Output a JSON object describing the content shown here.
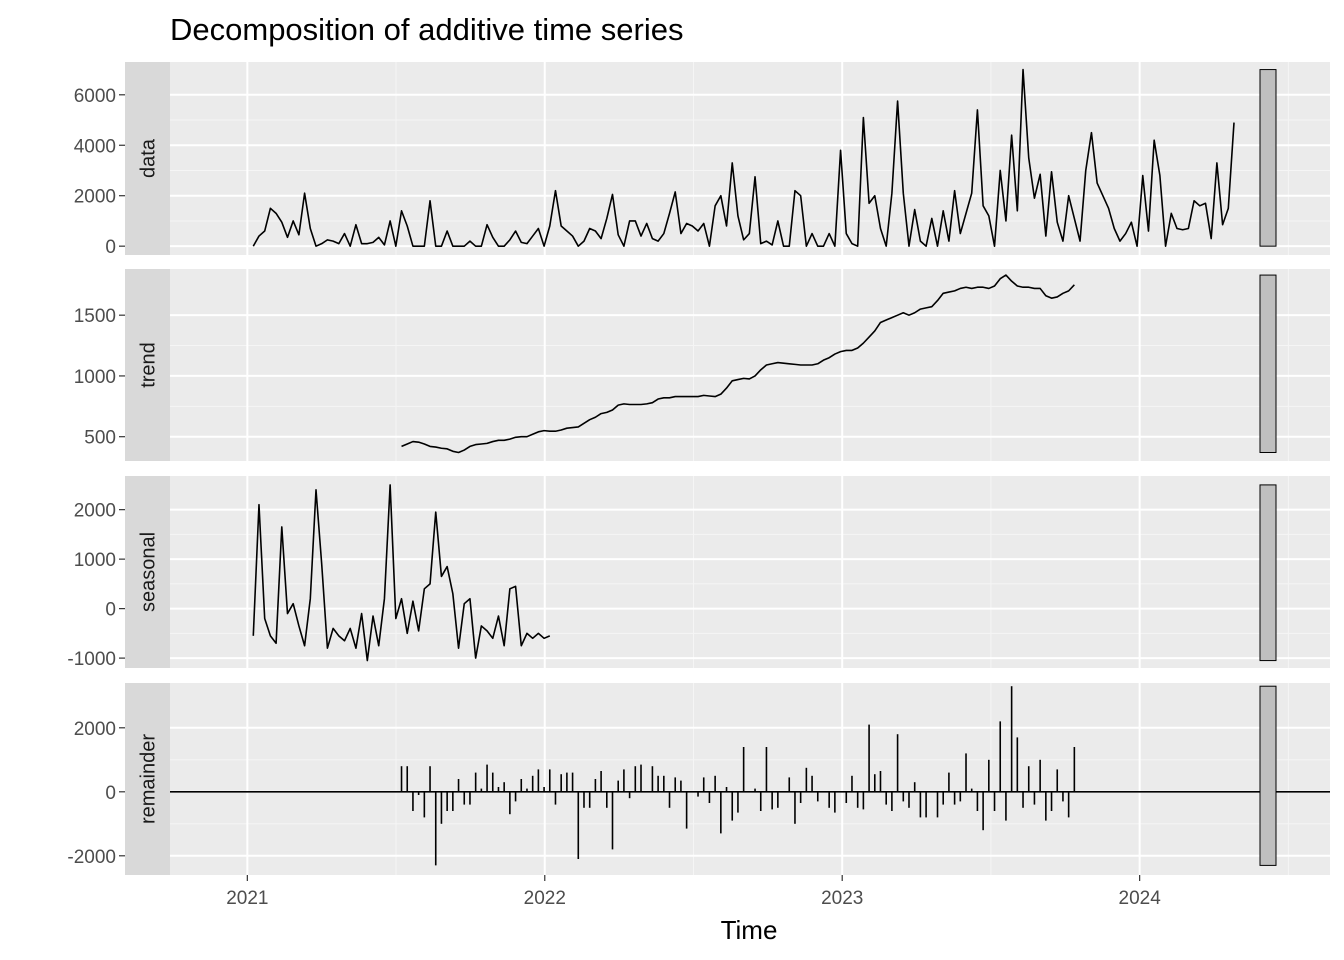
{
  "chart_data": {
    "type": "line",
    "title": "Decomposition of additive time series",
    "xlabel": "Time",
    "x_ticks": [
      "2021",
      "2022",
      "2023",
      "2024"
    ],
    "x_range": [
      2020.74,
      2024.64
    ],
    "weekly_start": 2021.02,
    "week_step": 0.01917,
    "range_bar_fill": "#bfbfbf",
    "panel_background": "#ebebeb",
    "strip_background": "#d9d9d9",
    "panels": [
      {
        "name": "data",
        "ylim": [
          -350,
          7300
        ],
        "y_ticks": [
          0,
          2000,
          4000,
          6000
        ],
        "y_tick_labels": [
          "0",
          "2000",
          "4000",
          "6000"
        ],
        "start_index": 0,
        "style": "line",
        "values": [
          0,
          400,
          600,
          1500,
          1300,
          950,
          350,
          1000,
          450,
          2100,
          700,
          0,
          100,
          250,
          200,
          100,
          500,
          0,
          850,
          100,
          100,
          150,
          350,
          50,
          1000,
          0,
          1400,
          800,
          0,
          0,
          0,
          1800,
          0,
          0,
          600,
          0,
          0,
          0,
          200,
          0,
          0,
          850,
          350,
          0,
          0,
          250,
          600,
          150,
          100,
          400,
          700,
          0,
          800,
          2200,
          800,
          600,
          400,
          0,
          200,
          700,
          600,
          300,
          1100,
          2050,
          450,
          0,
          1000,
          1000,
          400,
          900,
          300,
          200,
          500,
          1300,
          2150,
          500,
          900,
          800,
          600,
          900,
          0,
          1600,
          2000,
          800,
          3300,
          1200,
          250,
          500,
          2750,
          100,
          200,
          50,
          1000,
          0,
          0,
          2200,
          2000,
          0,
          500,
          0,
          0,
          500,
          0,
          3800,
          500,
          100,
          0,
          5100,
          1700,
          2000,
          700,
          0,
          2100,
          5750,
          2100,
          0,
          1450,
          200,
          0,
          1100,
          0,
          1400,
          200,
          2200,
          500,
          1300,
          2100,
          5400,
          1600,
          1200,
          0,
          3000,
          1000,
          4400,
          1400,
          7000,
          3500,
          1900,
          2850,
          400,
          2950,
          950,
          200,
          2000,
          1100,
          200,
          3000,
          4500,
          2500,
          2000,
          1500,
          700,
          200,
          500,
          950,
          0,
          2800,
          600,
          4200,
          2800,
          0,
          1300,
          700,
          650,
          700,
          1800,
          1600,
          1700,
          300,
          3300,
          850,
          1500,
          4900
        ]
      },
      {
        "name": "trend",
        "ylim": [
          300,
          1880
        ],
        "y_ticks": [
          500,
          1000,
          1500
        ],
        "y_tick_labels": [
          "500",
          "1000",
          "1500"
        ],
        "start_index": 26,
        "style": "line",
        "values": [
          420,
          440,
          460,
          455,
          440,
          420,
          415,
          405,
          400,
          380,
          370,
          390,
          420,
          435,
          440,
          445,
          460,
          470,
          470,
          480,
          495,
          500,
          500,
          520,
          540,
          550,
          545,
          545,
          555,
          570,
          575,
          580,
          610,
          640,
          660,
          690,
          700,
          720,
          760,
          770,
          765,
          765,
          765,
          770,
          780,
          810,
          820,
          820,
          830,
          830,
          830,
          830,
          830,
          840,
          835,
          830,
          850,
          900,
          960,
          970,
          980,
          975,
          1000,
          1050,
          1090,
          1100,
          1110,
          1105,
          1100,
          1095,
          1090,
          1090,
          1090,
          1100,
          1130,
          1150,
          1180,
          1200,
          1210,
          1210,
          1230,
          1270,
          1320,
          1370,
          1440,
          1460,
          1480,
          1500,
          1520,
          1500,
          1520,
          1550,
          1560,
          1570,
          1620,
          1680,
          1690,
          1700,
          1720,
          1730,
          1720,
          1730,
          1730,
          1720,
          1740,
          1800,
          1830,
          1780,
          1740,
          1730,
          1730,
          1720,
          1720,
          1660,
          1640,
          1650,
          1680,
          1700,
          1750
        ]
      },
      {
        "name": "seasonal",
        "ylim": [
          -1200,
          2680
        ],
        "y_ticks": [
          -1000,
          0,
          1000,
          2000
        ],
        "y_tick_labels": [
          "-1000",
          "0",
          "1000",
          "2000"
        ],
        "start_index": 0,
        "style": "line",
        "values": [
          -550,
          2100,
          -200,
          -550,
          -700,
          1650,
          -100,
          100,
          -350,
          -750,
          200,
          2400,
          900,
          -800,
          -400,
          -550,
          -650,
          -400,
          -800,
          -100,
          -1050,
          -150,
          -750,
          200,
          2500,
          -200,
          200,
          -500,
          150,
          -450,
          400,
          500,
          1950,
          650,
          850,
          300,
          -800,
          100,
          200,
          -1000,
          -350,
          -450,
          -600,
          -150,
          -750,
          400,
          450,
          -750,
          -500,
          -600,
          -500,
          -600,
          -550
        ]
      },
      {
        "name": "remainder",
        "ylim": [
          -2600,
          3400
        ],
        "y_ticks": [
          -2000,
          0,
          2000
        ],
        "y_tick_labels": [
          "-2000",
          "0",
          "2000"
        ],
        "start_index": 26,
        "style": "spikes",
        "values": [
          800,
          800,
          -600,
          -100,
          -800,
          800,
          -2300,
          -1000,
          -600,
          -600,
          400,
          -400,
          -400,
          600,
          100,
          850,
          600,
          150,
          300,
          -700,
          -300,
          400,
          100,
          500,
          700,
          150,
          700,
          -400,
          550,
          600,
          600,
          -2100,
          -500,
          -500,
          400,
          650,
          -500,
          -1800,
          350,
          700,
          -200,
          800,
          850,
          0,
          800,
          500,
          500,
          -500,
          450,
          350,
          -1150,
          0,
          -150,
          450,
          -350,
          500,
          -1300,
          150,
          -900,
          -650,
          1400,
          0,
          100,
          -600,
          1400,
          -550,
          -500,
          0,
          450,
          -1000,
          -350,
          750,
          500,
          -300,
          0,
          -500,
          -650,
          0,
          -350,
          500,
          -500,
          -550,
          2100,
          550,
          650,
          -400,
          -600,
          1800,
          -300,
          -500,
          300,
          -800,
          -800,
          0,
          -800,
          -400,
          600,
          -400,
          -300,
          1200,
          100,
          -600,
          -1200,
          1000,
          -600,
          2200,
          -900,
          3300,
          1700,
          -500,
          800,
          -400,
          1000,
          -900,
          -600,
          700,
          -300,
          -800,
          1400
        ]
      }
    ]
  }
}
